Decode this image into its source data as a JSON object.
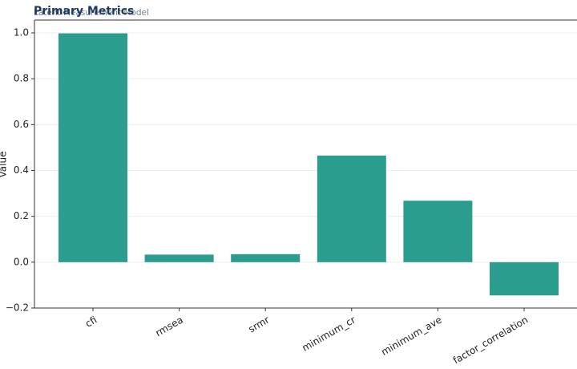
{
  "chart_data": {
    "type": "bar",
    "title": "Primary Metrics",
    "subtitle": "Latent Measurement Model",
    "y_label": "Value",
    "categories": [
      "cfi",
      "rmsea",
      "srmr",
      "minimum_cr",
      "minimum_ave",
      "factor_correlation"
    ],
    "values": [
      0.998,
      0.033,
      0.035,
      0.465,
      0.268,
      -0.145
    ],
    "color": "#2a9d8f",
    "ylim": [
      -0.2,
      1.056
    ],
    "yticks": [
      {
        "value": -0.2,
        "label": "−0.2"
      },
      {
        "value": 0,
        "label": "0.0"
      },
      {
        "value": 0.2,
        "label": "0.2"
      },
      {
        "value": 0.4,
        "label": "0.4"
      },
      {
        "value": 0.6,
        "label": "0.6"
      },
      {
        "value": 0.8,
        "label": "0.8"
      },
      {
        "value": 1.0,
        "label": "1.0"
      }
    ],
    "grid": true
  }
}
